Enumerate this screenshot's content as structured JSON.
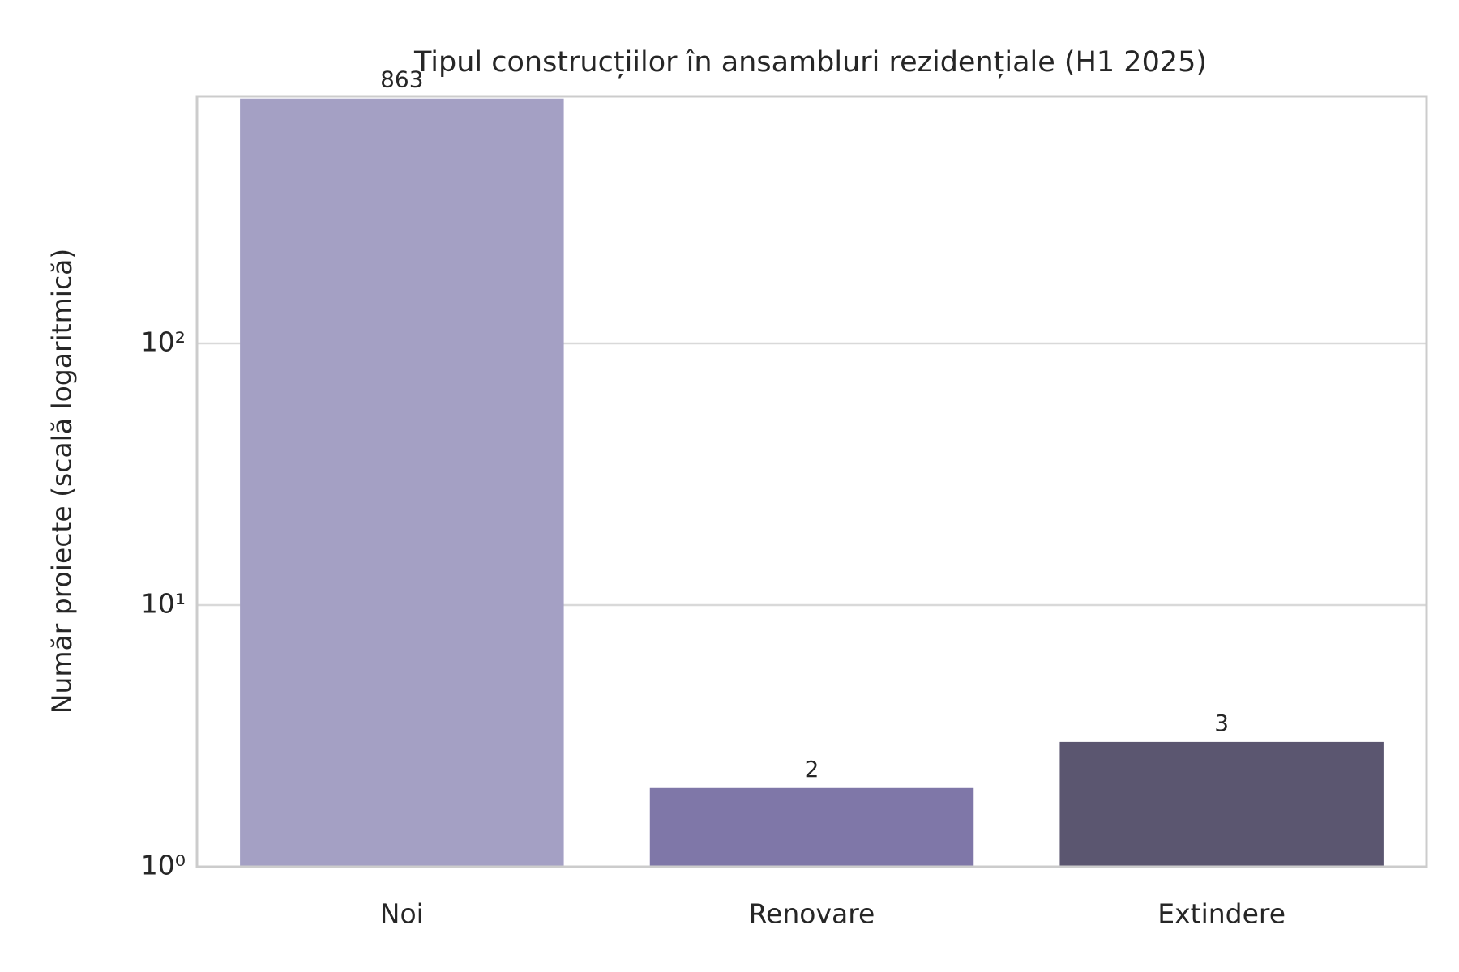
{
  "chart_data": {
    "type": "bar",
    "title": "Tipul construcțiilor în ansambluri rezidențiale (H1 2025)",
    "y_label": "Număr proiecte (scală logaritmică)",
    "categories": [
      "Noi",
      "Renovare",
      "Extindere"
    ],
    "values": [
      863,
      2,
      3
    ],
    "colors": [
      "#a4a0c4",
      "#7f77a8",
      "#5b5670"
    ],
    "log_y": true,
    "ylim": [
      1,
      880
    ],
    "yticks": [
      {
        "value": 1,
        "label": "10⁰"
      },
      {
        "value": 10,
        "label": "10¹"
      },
      {
        "value": 100,
        "label": "10²"
      }
    ],
    "grid": true
  }
}
